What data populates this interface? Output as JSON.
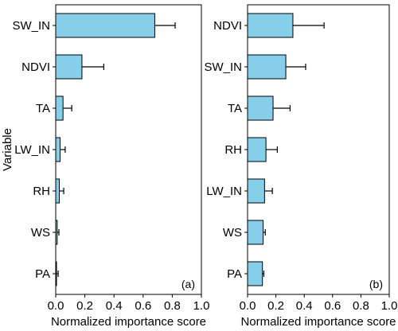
{
  "colors": {
    "bar_fill": "#87ceeb",
    "bar_stroke": "#000000",
    "axis": "#000000",
    "background": "#ffffff"
  },
  "chart_data": [
    {
      "type": "bar",
      "orientation": "horizontal",
      "panel_label": "(a)",
      "categories": [
        "SW_IN",
        "NDVI",
        "TA",
        "LW_IN",
        "RH",
        "WS",
        "PA"
      ],
      "values": [
        0.68,
        0.18,
        0.05,
        0.03,
        0.025,
        0.01,
        0.005
      ],
      "errors": [
        0.14,
        0.15,
        0.06,
        0.035,
        0.03,
        0.012,
        0.012
      ],
      "xlabel": "Normalized importance score",
      "ylabel": "Variable",
      "xlim": [
        0,
        1
      ],
      "xticks": [
        "0.0",
        "0.2",
        "0.4",
        "0.6",
        "0.8",
        "1.0"
      ],
      "grid": false
    },
    {
      "type": "bar",
      "orientation": "horizontal",
      "panel_label": "(b)",
      "categories": [
        "NDVI",
        "SW_IN",
        "TA",
        "RH",
        "LW_IN",
        "WS",
        "PA"
      ],
      "values": [
        0.32,
        0.27,
        0.18,
        0.13,
        0.12,
        0.11,
        0.105
      ],
      "errors": [
        0.22,
        0.14,
        0.12,
        0.08,
        0.055,
        0.015,
        0.01
      ],
      "xlabel": "Normalized importance score",
      "ylabel": "",
      "xlim": [
        0,
        1
      ],
      "xticks": [
        "0.0",
        "0.2",
        "0.4",
        "0.6",
        "0.8",
        "1.0"
      ],
      "grid": false
    }
  ]
}
